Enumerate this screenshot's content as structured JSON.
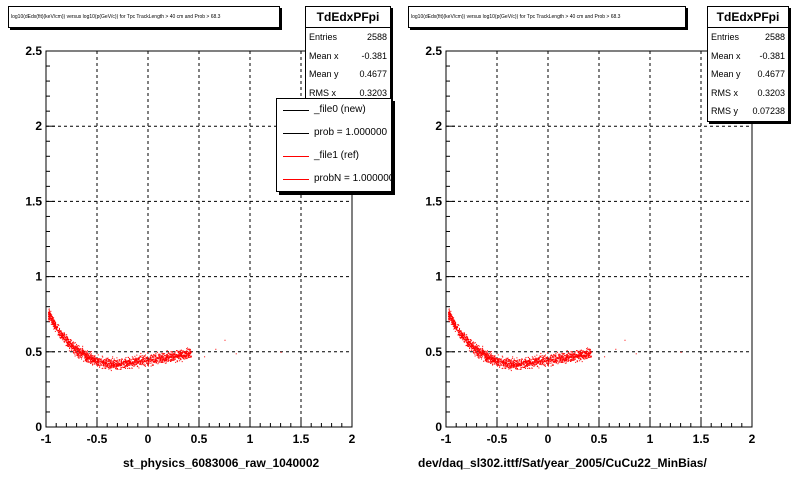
{
  "chart_data": [
    {
      "type": "scatter",
      "title": "log10(dEdx(fit)(keV/cm)) versus log10(p(GeV/c)) for Tpc TrackLength > 40 cm and Prob > 68.3",
      "xlabel": "st_physics_6083006_raw_1040002",
      "ylabel": "",
      "xlim": [
        -1,
        2
      ],
      "ylim": [
        0,
        2.5
      ],
      "x_ticks": [
        "-1",
        "-0.5",
        "0",
        "0.5",
        "1",
        "1.5",
        "2"
      ],
      "y_ticks": [
        "0",
        "0.5",
        "1",
        "1.5",
        "2",
        "2.5"
      ],
      "grid": true,
      "marker_color": "#ff0000",
      "stats": {
        "name": "TdEdxPFpi",
        "rows": [
          {
            "label": "Entries",
            "value": "2588"
          },
          {
            "label": "Mean x",
            "value": "-0.381"
          },
          {
            "label": "Mean y",
            "value": "0.4677"
          },
          {
            "label": "RMS x",
            "value": "0.3203"
          }
        ]
      },
      "legend": [
        {
          "label": "_file0 (new)",
          "color": "#000000"
        },
        {
          "label": "prob = 1.000000",
          "color": "#000000"
        },
        {
          "label": "_file1 (ref)",
          "color": "#ff0000"
        },
        {
          "label": "probN = 1.000000",
          "color": "#ff0000"
        }
      ],
      "band": [
        {
          "x": -1.0,
          "y": 0.78
        },
        {
          "x": -0.9,
          "y": 0.66
        },
        {
          "x": -0.8,
          "y": 0.57
        },
        {
          "x": -0.7,
          "y": 0.51
        },
        {
          "x": -0.6,
          "y": 0.47
        },
        {
          "x": -0.5,
          "y": 0.44
        },
        {
          "x": -0.4,
          "y": 0.42
        },
        {
          "x": -0.3,
          "y": 0.42
        },
        {
          "x": -0.2,
          "y": 0.43
        },
        {
          "x": -0.1,
          "y": 0.44
        },
        {
          "x": 0.0,
          "y": 0.45
        },
        {
          "x": 0.1,
          "y": 0.46
        },
        {
          "x": 0.2,
          "y": 0.47
        },
        {
          "x": 0.3,
          "y": 0.48
        },
        {
          "x": 0.4,
          "y": 0.49
        }
      ]
    },
    {
      "type": "scatter",
      "title": "log10(dEdx(fit)(keV/cm)) versus log10(p(GeV/c)) for Tpc TrackLength > 40 cm and Prob > 68.3",
      "xlabel": "dev/daq_sl302.ittf/Sat/year_2005/CuCu22_MinBias/",
      "ylabel": "",
      "xlim": [
        -1,
        2
      ],
      "ylim": [
        0,
        2.5
      ],
      "x_ticks": [
        "-1",
        "-0.5",
        "0",
        "0.5",
        "1",
        "1.5",
        "2"
      ],
      "y_ticks": [
        "0",
        "0.5",
        "1",
        "1.5",
        "2",
        "2.5"
      ],
      "grid": true,
      "marker_color": "#ff0000",
      "stats": {
        "name": "TdEdxPFpi",
        "rows": [
          {
            "label": "Entries",
            "value": "2588"
          },
          {
            "label": "Mean x",
            "value": "-0.381"
          },
          {
            "label": "Mean y",
            "value": "0.4677"
          },
          {
            "label": "RMS x",
            "value": "0.3203"
          },
          {
            "label": "RMS y",
            "value": "0.07238"
          }
        ]
      },
      "band": [
        {
          "x": -1.0,
          "y": 0.78
        },
        {
          "x": -0.9,
          "y": 0.66
        },
        {
          "x": -0.8,
          "y": 0.57
        },
        {
          "x": -0.7,
          "y": 0.51
        },
        {
          "x": -0.6,
          "y": 0.47
        },
        {
          "x": -0.5,
          "y": 0.44
        },
        {
          "x": -0.4,
          "y": 0.42
        },
        {
          "x": -0.3,
          "y": 0.42
        },
        {
          "x": -0.2,
          "y": 0.43
        },
        {
          "x": -0.1,
          "y": 0.44
        },
        {
          "x": 0.0,
          "y": 0.45
        },
        {
          "x": 0.1,
          "y": 0.46
        },
        {
          "x": 0.2,
          "y": 0.47
        },
        {
          "x": 0.3,
          "y": 0.48
        },
        {
          "x": 0.4,
          "y": 0.49
        }
      ]
    }
  ]
}
